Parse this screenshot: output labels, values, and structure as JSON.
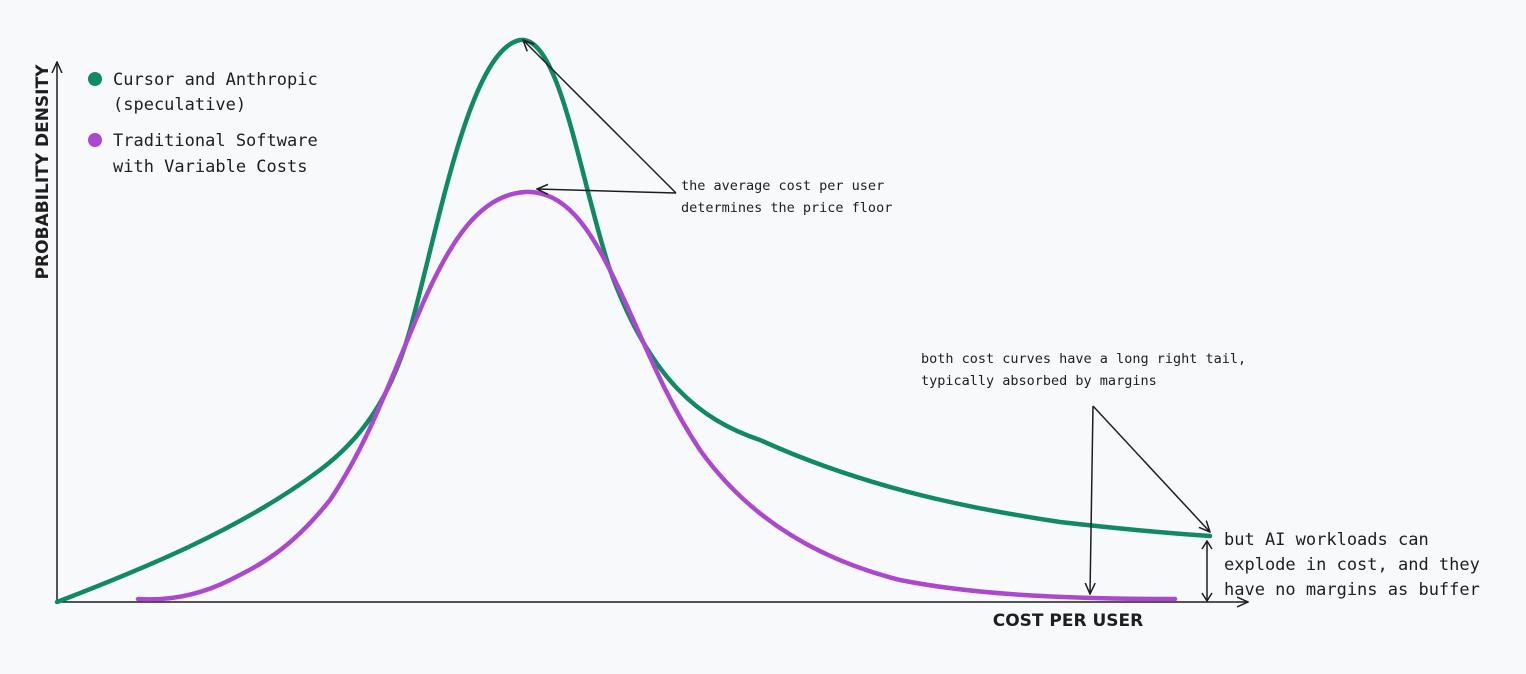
{
  "chart_data": {
    "type": "line",
    "xlabel": "COST PER USER",
    "ylabel": "PROBABILITY DENSITY",
    "grid": false,
    "legend_placement": "top-left",
    "series": [
      {
        "name": "Cursor and Anthropic (speculative)",
        "color": "#108a60"
      },
      {
        "name": "Traditional Software with Variable Costs",
        "color": "#ac48cf"
      }
    ],
    "legend": {
      "items": [
        {
          "lines": [
            "Cursor and Anthropic",
            "(speculative)"
          ],
          "color": "#108a60"
        },
        {
          "lines": [
            "Traditional Software",
            "with Variable Costs"
          ],
          "color": "#ac48cf"
        }
      ]
    },
    "annotations": {
      "average": [
        "the average cost per user",
        "determines the price floor"
      ],
      "tail": [
        "both cost curves have a long right tail,",
        "typically absorbed by margins"
      ],
      "explode": [
        "but AI workloads can",
        "explode in cost, and they",
        "have no margins as buffer"
      ]
    }
  }
}
